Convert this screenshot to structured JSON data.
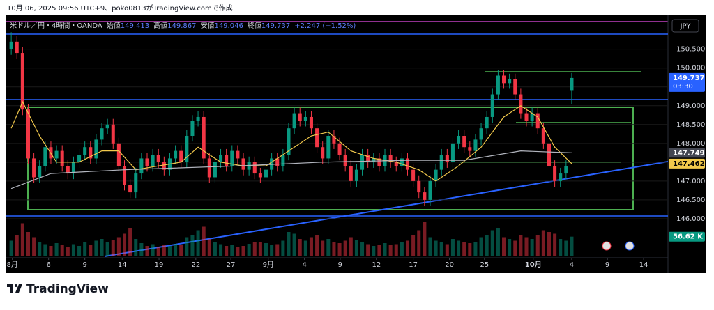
{
  "chart_data": {
    "type": "candlestick",
    "header": "10月 06, 2025 09:56 UTC+9、poko0813がTradingView.comで作成",
    "title": "米ドル／円・4時間・OANDA",
    "ohlc_labels": [
      "始値",
      "高値",
      "安値",
      "終値"
    ],
    "change": "+2.247 (+1.52%)",
    "currency": "JPY",
    "countdown": "03:30",
    "logo": "TradingView",
    "up_color": "#089981",
    "down_color": "#f23645",
    "xlim": [
      -1,
      116
    ],
    "ylim": [
      145,
      151.4
    ],
    "vlim": [
      0,
      110
    ],
    "xticks": [
      {
        "value": 0.2,
        "label": "8月"
      },
      {
        "value": 6.6,
        "label": "6"
      },
      {
        "value": 13,
        "label": "9"
      },
      {
        "value": 19.6,
        "label": "14"
      },
      {
        "value": 26.1,
        "label": "19"
      },
      {
        "value": 32.6,
        "label": "22"
      },
      {
        "value": 38.8,
        "label": "27"
      },
      {
        "value": 45.4,
        "label": "9月"
      },
      {
        "value": 51.8,
        "label": "4"
      },
      {
        "value": 58.1,
        "label": "9"
      },
      {
        "value": 64.5,
        "label": "12"
      },
      {
        "value": 71,
        "label": "17"
      },
      {
        "value": 77.4,
        "label": "20"
      },
      {
        "value": 83.6,
        "label": "25"
      },
      {
        "value": 92.2,
        "label": "10月"
      },
      {
        "value": 99,
        "label": "4"
      },
      {
        "value": 105.3,
        "label": "9"
      },
      {
        "value": 111.7,
        "label": "14"
      }
    ],
    "yticks": [
      {
        "value": 146,
        "label": "146.000"
      },
      {
        "value": 146.5,
        "label": "146.500"
      },
      {
        "value": 147,
        "label": "147.000"
      },
      {
        "value": 147.5,
        "label": "147.500"
      },
      {
        "value": 148,
        "label": "148.000"
      },
      {
        "value": 148.5,
        "label": "148.500"
      },
      {
        "value": 149,
        "label": "149.000"
      },
      {
        "value": 149.5,
        "label": "149.500"
      },
      {
        "value": 150,
        "label": "150.000"
      },
      {
        "value": 150.5,
        "label": "150.500"
      }
    ],
    "open": [
      150.5,
      150.7,
      150.4,
      148.9,
      147.6,
      147.1,
      147.4,
      147.9,
      147.6,
      147.8,
      147.4,
      147.2,
      147.5,
      147.7,
      147.9,
      147.6,
      148.1,
      148.4,
      148.5,
      148.0,
      147.4,
      146.9,
      146.7,
      147.2,
      147.6,
      147.4,
      147.7,
      147.5,
      147.3,
      147.6,
      147.8,
      147.5,
      148.2,
      148.6,
      148.7,
      147.6,
      147.1,
      147.5,
      147.7,
      147.4,
      147.8,
      147.6,
      147.3,
      147.5,
      147.2,
      147.1,
      147.3,
      147.6,
      147.4,
      147.7,
      148.4,
      148.8,
      148.6,
      148.7,
      148.4,
      147.9,
      147.6,
      148.2,
      148.0,
      147.7,
      147.4,
      147.0,
      147.3,
      147.7,
      147.5,
      147.6,
      147.4,
      147.7,
      147.5,
      147.4,
      147.6,
      147.3,
      147.0,
      146.7,
      146.5,
      147.0,
      147.3,
      147.7,
      147.5,
      148.0,
      148.2,
      147.9,
      147.8,
      148.1,
      148.4,
      148.7,
      149.3,
      149.8,
      149.6,
      149.7,
      149.3,
      148.8,
      148.6,
      148.8,
      148.4,
      148.0,
      147.4,
      147.0,
      147.2,
      149.413
    ],
    "high": [
      150.95,
      150.85,
      150.55,
      149.05,
      147.75,
      147.55,
      148.05,
      148.05,
      147.95,
      147.95,
      147.55,
      147.65,
      147.85,
      148.05,
      148.05,
      148.25,
      148.55,
      148.65,
      148.65,
      148.15,
      147.55,
      147.05,
      147.35,
      147.75,
      147.75,
      147.85,
      147.85,
      147.65,
      147.75,
      147.95,
      147.95,
      148.35,
      148.75,
      148.85,
      148.85,
      147.75,
      147.65,
      147.85,
      147.85,
      147.95,
      147.95,
      147.75,
      147.65,
      147.65,
      147.35,
      147.45,
      147.75,
      147.75,
      147.85,
      148.55,
      148.95,
      148.95,
      148.85,
      148.85,
      148.55,
      148.05,
      148.35,
      148.35,
      148.15,
      147.85,
      147.55,
      147.45,
      147.85,
      147.85,
      147.75,
      147.75,
      147.85,
      147.85,
      147.65,
      147.75,
      147.75,
      147.45,
      147.15,
      146.85,
      147.15,
      147.45,
      147.85,
      147.85,
      148.15,
      148.35,
      148.35,
      148.05,
      148.25,
      148.55,
      148.85,
      149.45,
      149.95,
      149.95,
      149.85,
      149.85,
      149.45,
      148.95,
      148.95,
      148.95,
      148.55,
      148.15,
      147.55,
      147.35,
      147.55,
      149.867
    ],
    "low": [
      150.35,
      150.25,
      148.75,
      147.45,
      146.95,
      146.95,
      147.25,
      147.45,
      147.45,
      147.25,
      147.05,
      147.05,
      147.35,
      147.55,
      147.45,
      147.45,
      147.95,
      148.25,
      147.85,
      147.25,
      146.75,
      146.55,
      146.55,
      147.05,
      147.25,
      147.25,
      147.35,
      147.15,
      147.15,
      147.45,
      147.35,
      147.35,
      148.05,
      148.45,
      147.45,
      146.95,
      146.95,
      147.35,
      147.25,
      147.25,
      147.45,
      147.15,
      147.15,
      147.05,
      146.95,
      146.95,
      147.15,
      147.25,
      147.25,
      147.55,
      148.25,
      148.45,
      148.45,
      148.25,
      147.75,
      147.45,
      147.45,
      147.85,
      147.55,
      147.25,
      146.85,
      146.85,
      147.15,
      147.35,
      147.35,
      147.25,
      147.25,
      147.35,
      147.25,
      147.25,
      147.15,
      146.85,
      146.55,
      146.35,
      146.35,
      146.85,
      147.15,
      147.35,
      147.35,
      147.85,
      147.75,
      147.65,
      147.65,
      147.95,
      148.25,
      148.55,
      149.15,
      149.45,
      149.45,
      149.15,
      148.65,
      148.45,
      148.45,
      148.25,
      147.85,
      147.25,
      146.85,
      146.85,
      147.05,
      149.046
    ],
    "close": [
      150.7,
      150.4,
      148.9,
      147.6,
      147.1,
      147.4,
      147.9,
      147.6,
      147.8,
      147.4,
      147.2,
      147.5,
      147.7,
      147.9,
      147.6,
      148.1,
      148.4,
      148.5,
      148.0,
      147.4,
      146.9,
      146.7,
      147.2,
      147.6,
      147.4,
      147.7,
      147.5,
      147.3,
      147.6,
      147.8,
      147.5,
      148.2,
      148.6,
      148.7,
      147.6,
      147.1,
      147.5,
      147.7,
      147.4,
      147.8,
      147.6,
      147.3,
      147.5,
      147.2,
      147.1,
      147.3,
      147.6,
      147.4,
      147.7,
      148.4,
      148.8,
      148.6,
      148.7,
      148.4,
      147.9,
      147.6,
      148.2,
      148.0,
      147.7,
      147.4,
      147.0,
      147.3,
      147.7,
      147.5,
      147.6,
      147.4,
      147.7,
      147.5,
      147.4,
      147.6,
      147.3,
      147.0,
      146.7,
      146.5,
      147.0,
      147.3,
      147.7,
      147.5,
      148.0,
      148.2,
      147.9,
      147.8,
      148.1,
      148.4,
      148.7,
      149.3,
      149.8,
      149.6,
      149.7,
      149.3,
      148.8,
      148.6,
      148.8,
      148.4,
      148.0,
      147.4,
      147.0,
      147.2,
      147.4,
      149.737
    ],
    "volume": [
      45,
      60,
      95,
      70,
      55,
      40,
      35,
      30,
      38,
      32,
      28,
      35,
      30,
      40,
      33,
      45,
      50,
      42,
      48,
      55,
      65,
      80,
      50,
      38,
      30,
      35,
      28,
      32,
      30,
      36,
      34,
      55,
      60,
      75,
      85,
      50,
      40,
      35,
      30,
      33,
      28,
      30,
      36,
      40,
      42,
      38,
      32,
      35,
      45,
      70,
      65,
      50,
      45,
      55,
      60,
      45,
      50,
      40,
      38,
      45,
      55,
      48,
      40,
      35,
      30,
      33,
      38,
      32,
      35,
      40,
      45,
      60,
      75,
      100,
      55,
      45,
      40,
      35,
      50,
      45,
      40,
      38,
      42,
      55,
      60,
      75,
      80,
      55,
      50,
      45,
      60,
      55,
      50,
      60,
      75,
      70,
      65,
      50,
      45,
      56.62
    ],
    "volume_label": "56.62 K",
    "moving_averages": [
      {
        "color": "#f2c94c",
        "x": [
          0,
          2,
          5,
          8,
          12,
          16,
          19,
          22,
          26,
          30,
          33,
          37,
          41,
          45,
          49,
          53,
          56,
          60,
          64,
          68,
          72,
          75,
          79,
          83,
          87,
          90,
          93,
          96,
          99
        ],
        "values": [
          148.4,
          149.1,
          148.2,
          147.5,
          147.5,
          147.8,
          147.8,
          147.3,
          147.4,
          147.5,
          147.9,
          147.5,
          147.4,
          147.4,
          147.8,
          148.2,
          148.3,
          147.8,
          147.6,
          147.5,
          147.3,
          147.0,
          147.4,
          147.9,
          148.7,
          149.0,
          148.7,
          147.9,
          147.462
        ]
      },
      {
        "color": "#b2b5be",
        "x": [
          0,
          7,
          20,
          40,
          55,
          70,
          80,
          90,
          99
        ],
        "values": [
          146.8,
          147.2,
          147.3,
          147.4,
          147.5,
          147.55,
          147.55,
          147.8,
          147.749
        ]
      }
    ]
  }
}
